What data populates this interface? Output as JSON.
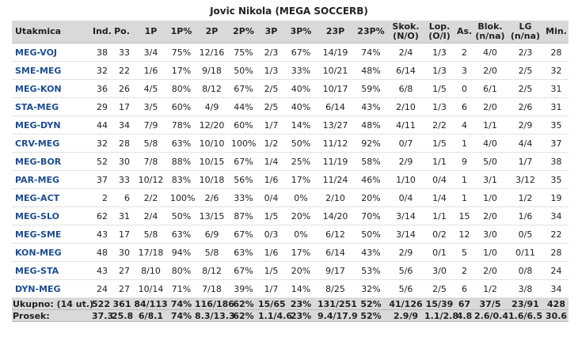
{
  "title": "Jovic Nikola (MEGA SOCCERB)",
  "table": {
    "header": [
      "Utakmica",
      "Ind.",
      "Po.",
      "1P",
      "1P%",
      "2P",
      "2P%",
      "3P",
      "3P%",
      "23P",
      "23P%",
      "Skok. (N/O)",
      "Lop. (O/I)",
      "As.",
      "Blok. (n/na)",
      "LG (n/na)",
      "Min."
    ],
    "rows": [
      [
        "MEG-VOJ",
        "38",
        "33",
        "3/4",
        "75%",
        "12/16",
        "75%",
        "2/3",
        "67%",
        "14/19",
        "74%",
        "2/4",
        "1/3",
        "2",
        "4/0",
        "2/3",
        "28"
      ],
      [
        "SME-MEG",
        "32",
        "22",
        "1/6",
        "17%",
        "9/18",
        "50%",
        "1/3",
        "33%",
        "10/21",
        "48%",
        "6/14",
        "1/3",
        "3",
        "2/0",
        "2/5",
        "32"
      ],
      [
        "MEG-KON",
        "36",
        "26",
        "4/5",
        "80%",
        "8/12",
        "67%",
        "2/5",
        "40%",
        "10/17",
        "59%",
        "6/8",
        "1/5",
        "0",
        "6/1",
        "2/5",
        "31"
      ],
      [
        "STA-MEG",
        "29",
        "17",
        "3/5",
        "60%",
        "4/9",
        "44%",
        "2/5",
        "40%",
        "6/14",
        "43%",
        "2/10",
        "1/3",
        "6",
        "2/0",
        "2/6",
        "31"
      ],
      [
        "MEG-DYN",
        "44",
        "34",
        "7/9",
        "78%",
        "12/20",
        "60%",
        "1/7",
        "14%",
        "13/27",
        "48%",
        "4/11",
        "2/2",
        "4",
        "1/1",
        "2/9",
        "35"
      ],
      [
        "CRV-MEG",
        "32",
        "28",
        "5/8",
        "63%",
        "10/10",
        "100%",
        "1/2",
        "50%",
        "11/12",
        "92%",
        "0/7",
        "1/5",
        "1",
        "4/0",
        "4/4",
        "37"
      ],
      [
        "MEG-BOR",
        "52",
        "30",
        "7/8",
        "88%",
        "10/15",
        "67%",
        "1/4",
        "25%",
        "11/19",
        "58%",
        "2/9",
        "1/1",
        "9",
        "5/0",
        "1/7",
        "38"
      ],
      [
        "PAR-MEG",
        "37",
        "33",
        "10/12",
        "83%",
        "10/18",
        "56%",
        "1/6",
        "17%",
        "11/24",
        "46%",
        "1/10",
        "0/4",
        "1",
        "3/1",
        "3/12",
        "35"
      ],
      [
        "MEG-ACT",
        "2",
        "6",
        "2/2",
        "100%",
        "2/6",
        "33%",
        "0/4",
        "0%",
        "2/10",
        "20%",
        "0/4",
        "1/4",
        "1",
        "1/0",
        "1/2",
        "19"
      ],
      [
        "MEG-SLO",
        "62",
        "31",
        "2/4",
        "50%",
        "13/15",
        "87%",
        "1/5",
        "20%",
        "14/20",
        "70%",
        "3/14",
        "1/1",
        "15",
        "2/0",
        "1/6",
        "34"
      ],
      [
        "MEG-SME",
        "43",
        "17",
        "5/8",
        "63%",
        "6/9",
        "67%",
        "0/3",
        "0%",
        "6/12",
        "50%",
        "3/14",
        "0/2",
        "12",
        "3/0",
        "0/5",
        "22"
      ],
      [
        "KON-MEG",
        "48",
        "30",
        "17/18",
        "94%",
        "5/8",
        "63%",
        "1/6",
        "17%",
        "6/14",
        "43%",
        "2/9",
        "0/1",
        "5",
        "1/0",
        "0/11",
        "28"
      ],
      [
        "MEG-STA",
        "43",
        "27",
        "8/10",
        "80%",
        "8/12",
        "67%",
        "1/5",
        "20%",
        "9/17",
        "53%",
        "5/6",
        "3/0",
        "2",
        "2/0",
        "0/8",
        "24"
      ],
      [
        "DYN-MEG",
        "24",
        "27",
        "10/14",
        "71%",
        "7/18",
        "39%",
        "1/7",
        "14%",
        "8/25",
        "32%",
        "5/6",
        "2/5",
        "6",
        "1/2",
        "3/8",
        "34"
      ]
    ],
    "footer": [
      [
        "Ukupno: (14 ut.)",
        "522",
        "361",
        "84/113",
        "74%",
        "116/186",
        "62%",
        "15/65",
        "23%",
        "131/251",
        "52%",
        "41/126",
        "15/39",
        "67",
        "37/5",
        "23/91",
        "428"
      ],
      [
        "Prosek:",
        "37.3",
        "25.8",
        "6/8.1",
        "74%",
        "8.3/13.3",
        "62%",
        "1.1/4.6",
        "23%",
        "9.4/17.9",
        "52%",
        "2.9/9",
        "1.1/2.8",
        "4.8",
        "2.6/0.4",
        "1.6/6.5",
        "30.6"
      ]
    ]
  }
}
